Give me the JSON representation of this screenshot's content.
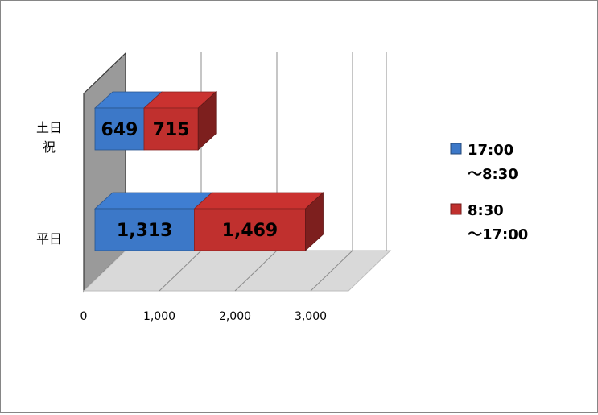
{
  "chart_data": {
    "type": "bar",
    "orientation": "horizontal",
    "stacked": true,
    "style": "3d",
    "categories": [
      "平日",
      "土日\n祝"
    ],
    "series": [
      {
        "name": "17:00\n～8:30",
        "values": [
          1313,
          649
        ],
        "labels": [
          "1,313",
          "649"
        ],
        "color": "#3C78C8"
      },
      {
        "name": "8:30\n～17:00",
        "values": [
          1469,
          715
        ],
        "labels": [
          "1,469",
          "715"
        ],
        "color": "#C0302E"
      }
    ],
    "x_ticks": [
      0,
      1000,
      2000,
      3000
    ],
    "x_tick_labels": [
      "0",
      "1,000",
      "2,000",
      "3,000"
    ],
    "xlim": [
      0,
      3000
    ],
    "grid": true,
    "legend_position": "right"
  }
}
